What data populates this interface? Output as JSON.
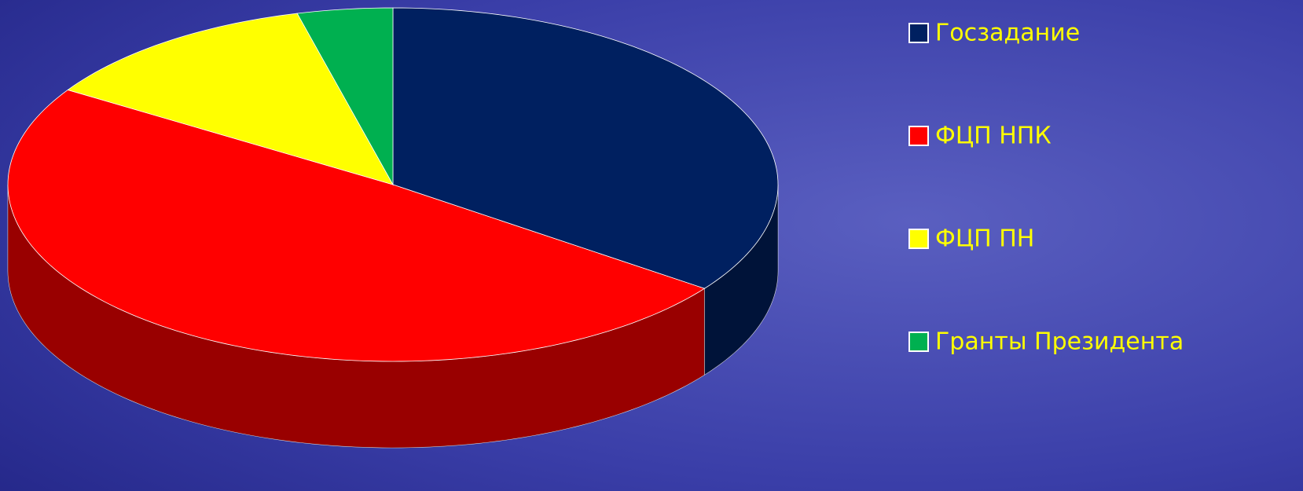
{
  "chart_data": {
    "type": "pie3d",
    "categories": [
      "Госзадание",
      "ФЦП НПК",
      "ФЦП ПН",
      "Гранты Президента"
    ],
    "values": [
      35,
      49,
      12,
      4
    ],
    "colors": [
      "#002060",
      "#ff0000",
      "#ffff00",
      "#00b050"
    ],
    "legend": "right"
  }
}
